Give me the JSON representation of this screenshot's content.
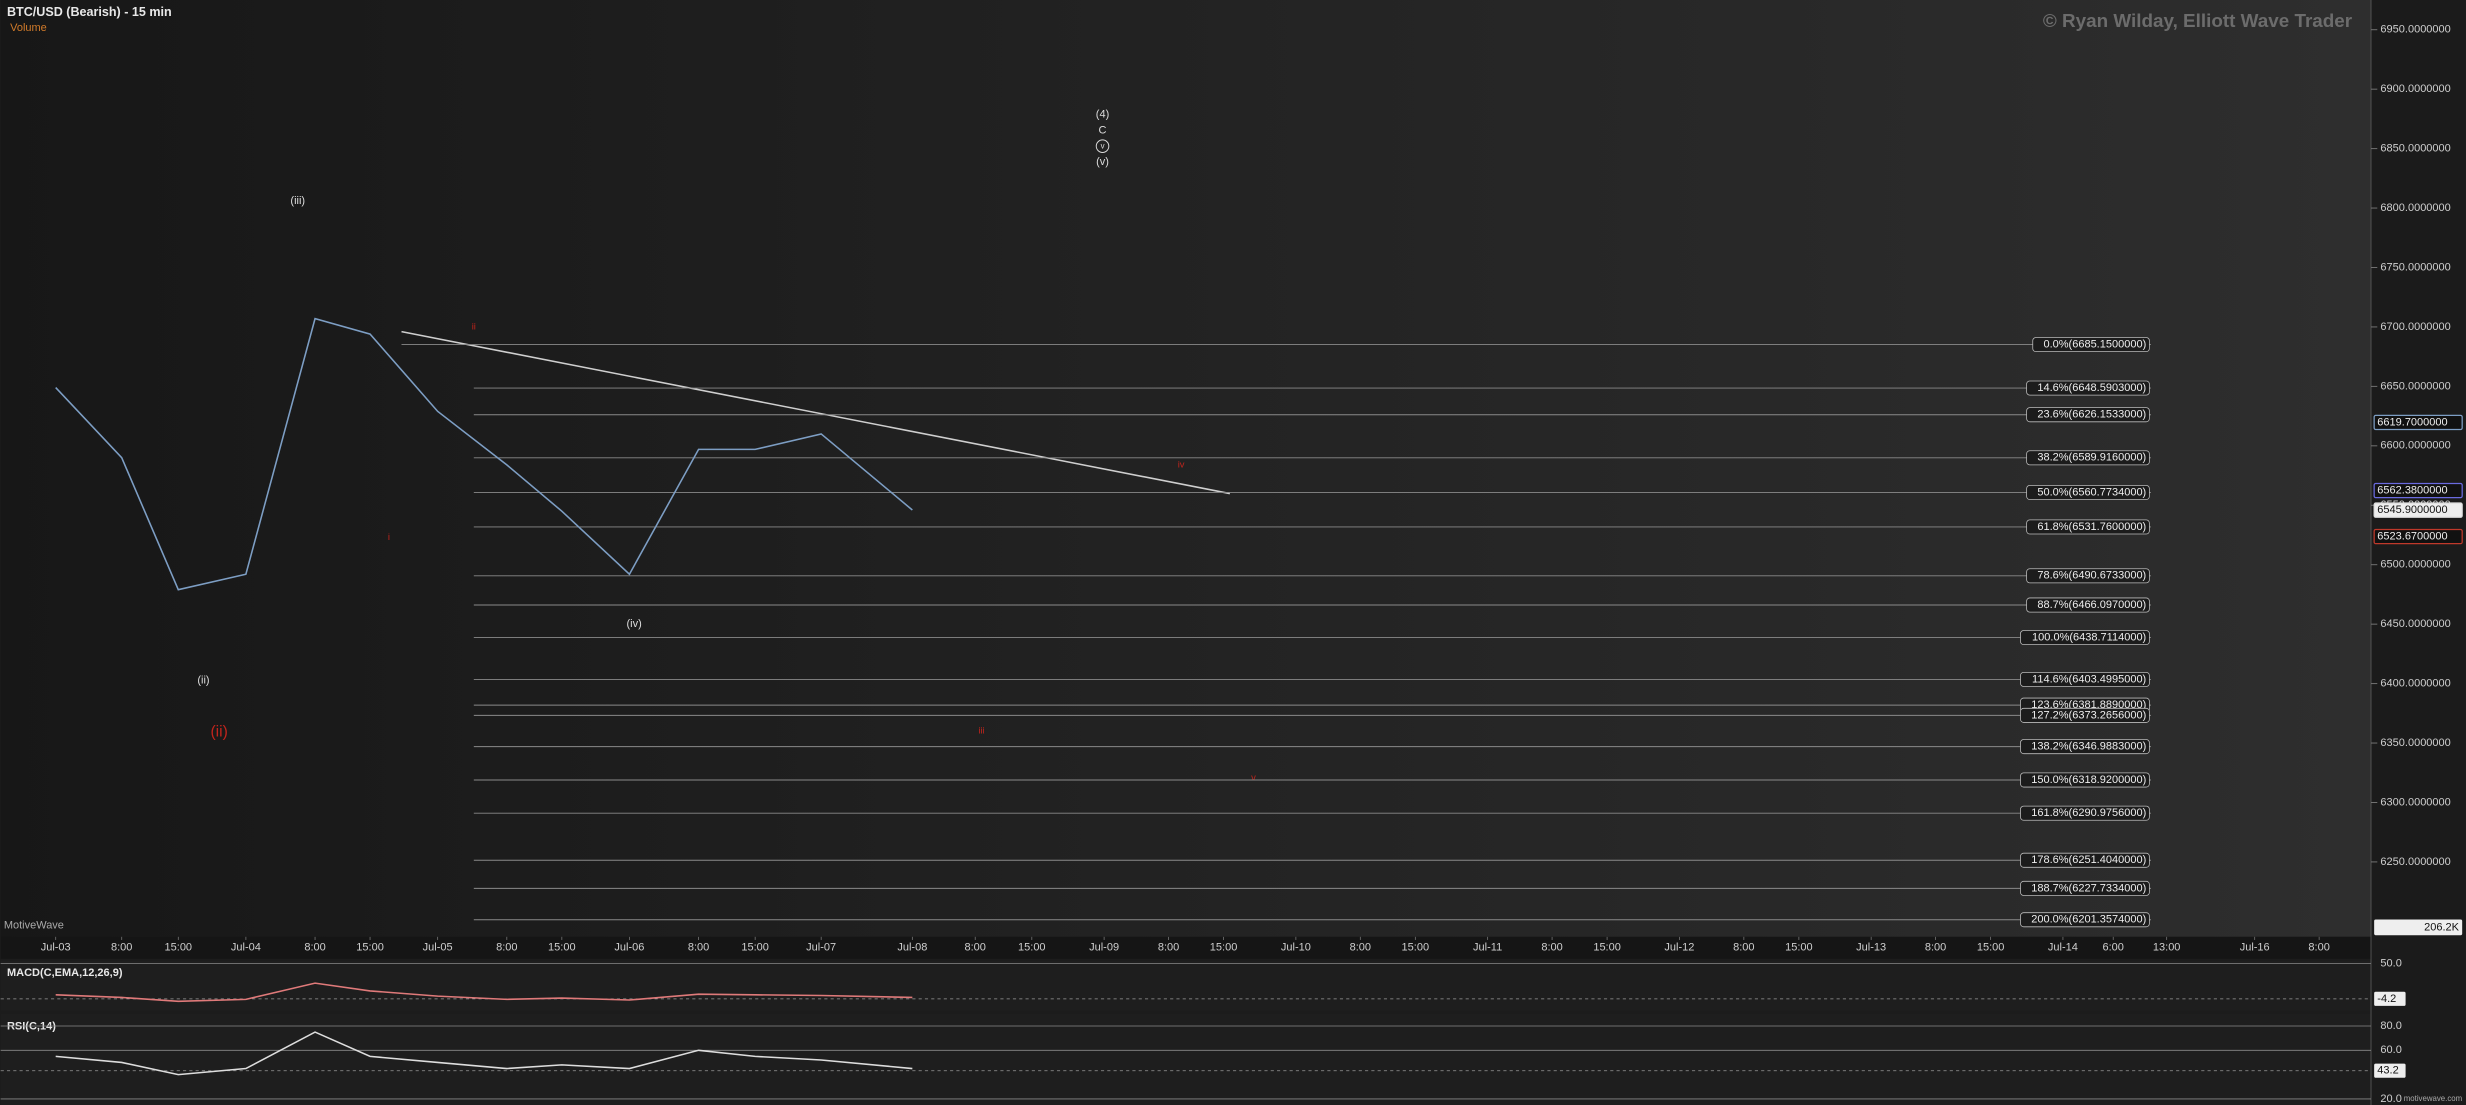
{
  "header": {
    "title": "BTC/USD (Bearish) - 15 min",
    "volume_label": "Volume",
    "watermark": "© Ryan Wilday, Elliott Wave Trader",
    "brand": "MotiveWave",
    "brand_url": "motivewave.com"
  },
  "wave_labels": [
    "(iii)",
    "(ii)",
    "(ii)",
    "(iv)",
    "(4)",
    "C",
    "v",
    "(v)",
    "ii",
    "i",
    "iv",
    "iii",
    "v"
  ],
  "chart_data": {
    "type": "line",
    "categories": [
      "Jul-03",
      "8:00",
      "15:00",
      "Jul-04",
      "8:00",
      "15:00",
      "Jul-05",
      "8:00",
      "15:00",
      "Jul-06",
      "8:00",
      "15:00",
      "Jul-07",
      "Jul-08",
      "8:00",
      "15:00",
      "Jul-09",
      "8:00",
      "15:00",
      "Jul-10",
      "8:00",
      "15:00",
      "Jul-11",
      "8:00",
      "15:00",
      "Jul-12",
      "8:00",
      "15:00",
      "Jul-13",
      "8:00",
      "15:00",
      "Jul-14",
      "6:00",
      "13:00",
      "Jul-16",
      "8:00"
    ],
    "series": [
      {
        "name": "BTC/USD",
        "color": "#7d9ec4",
        "values": [
          6649,
          6590,
          6479,
          6492,
          6707,
          6694,
          6629,
          6584,
          6545,
          6492,
          6597,
          6597,
          6610,
          6546,
          null,
          null,
          null,
          null,
          null,
          null,
          null,
          null,
          null,
          null,
          null,
          null,
          null,
          null,
          null,
          null,
          null,
          null,
          null,
          null,
          null,
          null
        ]
      }
    ],
    "ylim": [
      6187,
      6975
    ],
    "yticks": [
      {
        "value": 6950,
        "label": "6950.0000000"
      },
      {
        "value": 6900,
        "label": "6900.0000000"
      },
      {
        "value": 6850,
        "label": "6850.0000000"
      },
      {
        "value": 6800,
        "label": "6800.0000000"
      },
      {
        "value": 6750,
        "label": "6750.0000000"
      },
      {
        "value": 6700,
        "label": "6700.0000000"
      },
      {
        "value": 6650,
        "label": "6650.0000000"
      },
      {
        "value": 6600,
        "label": "6600.0000000"
      },
      {
        "value": 6550,
        "label": "6550.0000000"
      },
      {
        "value": 6500,
        "label": "6500.0000000"
      },
      {
        "value": 6450,
        "label": "6450.0000000"
      },
      {
        "value": 6400,
        "label": "6400.0000000"
      },
      {
        "value": 6350,
        "label": "6350.0000000"
      },
      {
        "value": 6300,
        "label": "6300.0000000"
      },
      {
        "value": 6250,
        "label": "6250.0000000"
      }
    ],
    "price_tags": [
      {
        "value": 6619.7,
        "label": "6619.7000000",
        "color": "#7d9ec4"
      },
      {
        "value": 6562.38,
        "label": "6562.3800000",
        "color": "#6a6adf"
      },
      {
        "value": 6545.9,
        "label": "6545.9000000",
        "color": "#dddddd"
      },
      {
        "value": 6523.67,
        "label": "6523.6700000",
        "color": "#c0392b"
      }
    ],
    "volume_tag": "206.2K",
    "fib_levels": [
      {
        "value": 6685.15,
        "label": "0.0%(6685.1500000)"
      },
      {
        "value": 6648.5903,
        "label": "14.6%(6648.5903000)"
      },
      {
        "value": 6626.1533,
        "label": "23.6%(6626.1533000)"
      },
      {
        "value": 6589.916,
        "label": "38.2%(6589.9160000)"
      },
      {
        "value": 6560.7734,
        "label": "50.0%(6560.7734000)"
      },
      {
        "value": 6531.76,
        "label": "61.8%(6531.7600000)"
      },
      {
        "value": 6490.6733,
        "label": "78.6%(6490.6733000)"
      },
      {
        "value": 6466.097,
        "label": "88.7%(6466.0970000)"
      },
      {
        "value": 6438.7114,
        "label": "100.0%(6438.7114000)"
      },
      {
        "value": 6403.4995,
        "label": "114.6%(6403.4995000)"
      },
      {
        "value": 6381.889,
        "label": "123.6%(6381.8890000)"
      },
      {
        "value": 6373.2656,
        "label": "127.2%(6373.2656000)"
      },
      {
        "value": 6346.9883,
        "label": "138.2%(6346.9883000)"
      },
      {
        "value": 6318.92,
        "label": "150.0%(6318.9200000)"
      },
      {
        "value": 6290.9756,
        "label": "161.8%(6290.9756000)"
      },
      {
        "value": 6251.404,
        "label": "178.6%(6251.4040000)"
      },
      {
        "value": 6227.7334,
        "label": "188.7%(6227.7334000)"
      },
      {
        "value": 6201.3574,
        "label": "200.0%(6201.3574000)"
      }
    ]
  },
  "macd": {
    "title": "MACD(C,EMA,12,26,9)",
    "ylim": [
      -20,
      55
    ],
    "yticks": [
      {
        "value": 50,
        "label": "50.0"
      }
    ],
    "current": {
      "value": -4.2,
      "label": "-4.2"
    },
    "values": [
      2,
      -2,
      -8,
      -5,
      20,
      8,
      0,
      -5,
      -3,
      -6,
      3,
      2,
      1,
      -2,
      null,
      null,
      null,
      null,
      null,
      null,
      null,
      null,
      null,
      null,
      null,
      null,
      null,
      null,
      null,
      null,
      null,
      null,
      null,
      null,
      null,
      null
    ]
  },
  "rsi": {
    "title": "RSI(C,14)",
    "ylim": [
      15,
      90
    ],
    "yticks": [
      {
        "value": 80,
        "label": "80.0"
      },
      {
        "value": 60,
        "label": "60.0"
      },
      {
        "value": 20,
        "label": "20.0"
      }
    ],
    "current": {
      "value": 43.2,
      "label": "43.2"
    },
    "values": [
      55,
      50,
      40,
      45,
      75,
      55,
      50,
      45,
      48,
      45,
      60,
      55,
      52,
      45,
      null,
      null,
      null,
      null,
      null,
      null,
      null,
      null,
      null,
      null,
      null,
      null,
      null,
      null,
      null,
      null,
      null,
      null,
      null,
      null,
      null,
      null
    ]
  }
}
